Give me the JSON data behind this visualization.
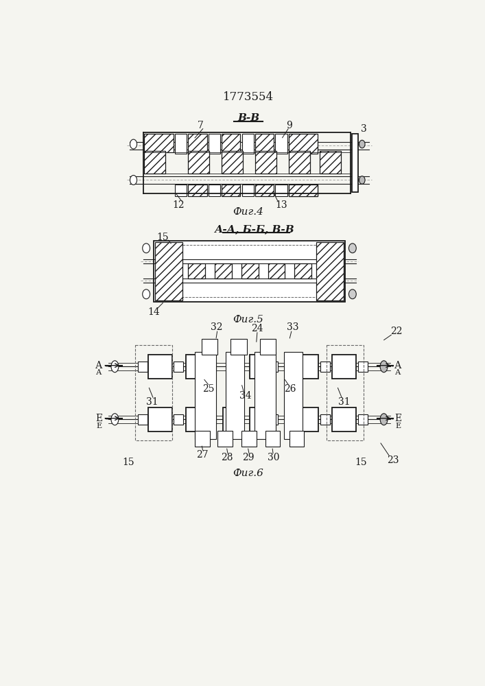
{
  "title": "1773554",
  "fig4_label": "Фиг.4",
  "fig5_label": "Фиг.5",
  "fig6_label": "Фиг.6",
  "section_b_b": "В-В",
  "section_aa_bb_vv": "А-А,Б-Б,В-В",
  "bg_color": "#f5f5f0",
  "line_color": "#1a1a1a"
}
